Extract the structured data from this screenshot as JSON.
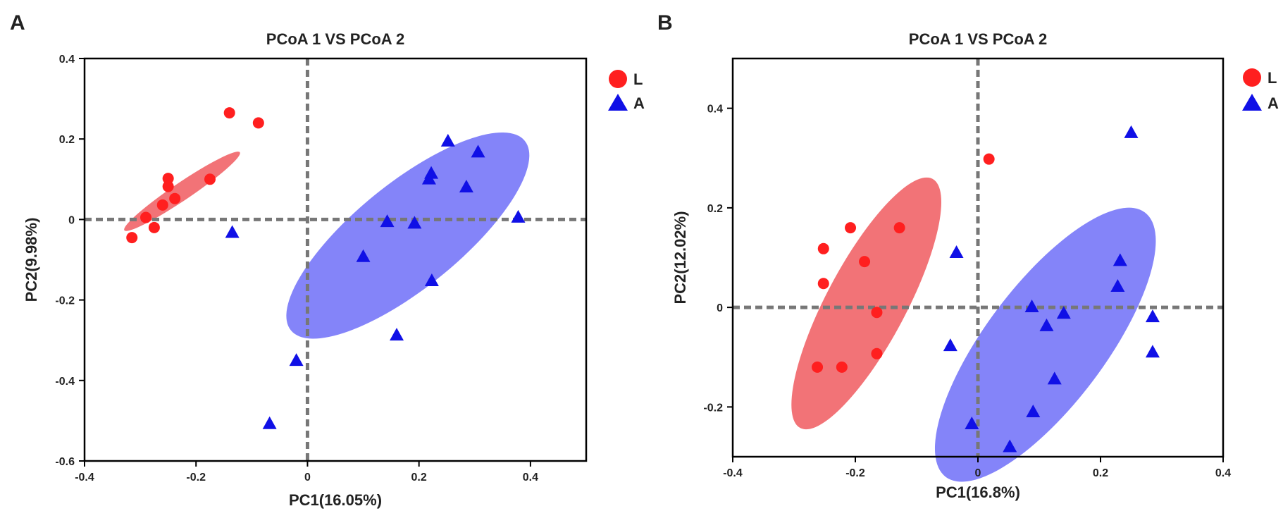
{
  "chart_data": [
    {
      "panel": "A",
      "type": "scatter",
      "title": "PCoA 1 VS PCoA 2",
      "xlabel": "PC1(16.05%)",
      "ylabel": "PC2(9.98%)",
      "xlim": [
        -0.4,
        0.5
      ],
      "ylim": [
        -0.6,
        0.4
      ],
      "xticks": [
        -0.4,
        -0.2,
        0,
        0.2,
        0.4
      ],
      "xtick_labels": [
        "-0.4",
        "-0.2",
        "0",
        "0.2",
        "0.4"
      ],
      "yticks": [
        -0.6,
        -0.4,
        -0.2,
        0,
        0.2,
        0.4
      ],
      "ytick_labels": [
        "-0.6",
        "-0.4",
        "-0.2",
        "0",
        "0.2",
        "0.4"
      ],
      "legend_position": "outside-top-right",
      "series": [
        {
          "name": "L",
          "marker": "circle",
          "color": "#ff1f1f",
          "ellipse_color": "#f05a5f",
          "ellipse": {
            "cx": -0.225,
            "cy": 0.07,
            "rx": 0.125,
            "ry": 0.022,
            "angle_deg": 34
          },
          "points": [
            [
              -0.14,
              0.265
            ],
            [
              -0.088,
              0.24
            ],
            [
              -0.175,
              0.1
            ],
            [
              -0.25,
              0.102
            ],
            [
              -0.25,
              0.082
            ],
            [
              -0.238,
              0.052
            ],
            [
              -0.26,
              0.036
            ],
            [
              -0.29,
              0.005
            ],
            [
              -0.275,
              -0.02
            ],
            [
              -0.315,
              -0.045
            ]
          ]
        },
        {
          "name": "A",
          "marker": "triangle",
          "color": "#1010e6",
          "ellipse_color": "#6e6ef8",
          "ellipse": {
            "cx": 0.18,
            "cy": -0.04,
            "rx": 0.27,
            "ry": 0.13,
            "angle_deg": 39
          },
          "points": [
            [
              0.252,
              0.197
            ],
            [
              0.306,
              0.17
            ],
            [
              0.222,
              0.117
            ],
            [
              0.218,
              0.103
            ],
            [
              0.285,
              0.083
            ],
            [
              0.378,
              0.008
            ],
            [
              0.143,
              -0.003
            ],
            [
              0.192,
              -0.007
            ],
            [
              -0.135,
              -0.03
            ],
            [
              0.1,
              -0.09
            ],
            [
              0.223,
              -0.15
            ],
            [
              0.16,
              -0.285
            ],
            [
              -0.02,
              -0.348
            ],
            [
              -0.068,
              -0.505
            ]
          ]
        }
      ]
    },
    {
      "panel": "B",
      "type": "scatter",
      "title": "PCoA 1 VS PCoA 2",
      "xlabel": "PC1(16.8%)",
      "ylabel": "PC2(12.02%)",
      "xlim": [
        -0.4,
        0.4
      ],
      "ylim": [
        -0.3,
        0.5
      ],
      "xticks": [
        -0.4,
        -0.2,
        0,
        0.2,
        0.4
      ],
      "xtick_labels": [
        "-0.4",
        "-0.2",
        "0",
        "0.2",
        "0.4"
      ],
      "yticks": [
        -0.2,
        0,
        0.2,
        0.4
      ],
      "ytick_labels": [
        "-0.2",
        "0",
        "0.2",
        "0.4"
      ],
      "legend_position": "outside-top-right",
      "series": [
        {
          "name": "L",
          "marker": "circle",
          "color": "#ff1f1f",
          "ellipse_color": "#f05a5f",
          "ellipse": {
            "cx": -0.182,
            "cy": 0.008,
            "rx": 0.23,
            "ry": 0.08,
            "angle_deg": 62
          },
          "points": [
            [
              0.018,
              0.298
            ],
            [
              -0.252,
              0.118
            ],
            [
              -0.208,
              0.16
            ],
            [
              -0.128,
              0.16
            ],
            [
              -0.185,
              0.092
            ],
            [
              -0.252,
              0.048
            ],
            [
              -0.165,
              -0.01
            ],
            [
              -0.165,
              -0.093
            ],
            [
              -0.262,
              -0.12
            ],
            [
              -0.222,
              -0.12
            ]
          ]
        },
        {
          "name": "A",
          "marker": "triangle",
          "color": "#1010e6",
          "ellipse_color": "#6e6ef8",
          "ellipse": {
            "cx": 0.11,
            "cy": -0.075,
            "rx": 0.27,
            "ry": 0.12,
            "angle_deg": 53
          },
          "points": [
            [
              0.25,
              0.353
            ],
            [
              -0.035,
              0.112
            ],
            [
              0.232,
              0.096
            ],
            [
              0.228,
              0.044
            ],
            [
              0.088,
              0.003
            ],
            [
              0.14,
              -0.01
            ],
            [
              0.285,
              -0.017
            ],
            [
              0.112,
              -0.035
            ],
            [
              -0.045,
              -0.075
            ],
            [
              0.285,
              -0.088
            ],
            [
              0.125,
              -0.142
            ],
            [
              0.09,
              -0.208
            ],
            [
              -0.01,
              -0.232
            ],
            [
              0.052,
              -0.278
            ]
          ]
        }
      ]
    }
  ]
}
